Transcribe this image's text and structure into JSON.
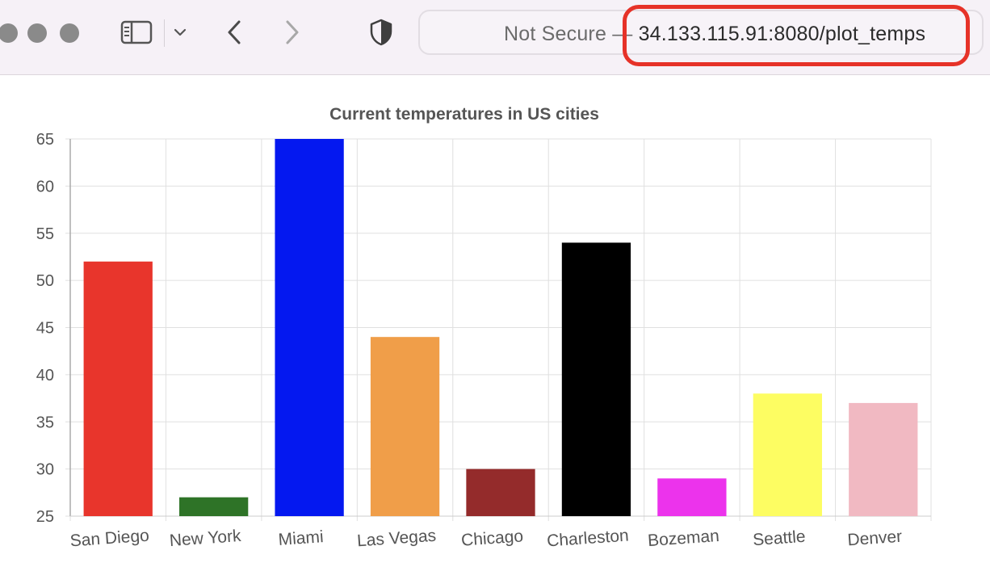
{
  "browser": {
    "security_label": "Not Secure",
    "separator": "—",
    "url": "34.133.115.91:8080/plot_temps",
    "icons": {
      "back": "chevron-left-icon",
      "forward": "chevron-right-icon",
      "sidebar": "sidebar-icon",
      "dropdown": "chevron-down-icon",
      "shield": "shield-icon"
    }
  },
  "chart_data": {
    "type": "bar",
    "title": "Current temperatures in US cities",
    "xlabel": "",
    "ylabel": "",
    "categories": [
      "San Diego",
      "New York",
      "Miami",
      "Las Vegas",
      "Chicago",
      "Charleston",
      "Bozeman",
      "Seattle",
      "Denver"
    ],
    "values": [
      52,
      27,
      65,
      44,
      30,
      54,
      29,
      38,
      37
    ],
    "colors": [
      "#e8352c",
      "#2e7327",
      "#0418f0",
      "#f09e49",
      "#942b2b",
      "#000000",
      "#ec33ec",
      "#fdfd62",
      "#f1b9c2"
    ],
    "ylim": [
      25,
      65
    ],
    "yticks": [
      25,
      30,
      35,
      40,
      45,
      50,
      55,
      60,
      65
    ],
    "grid": true,
    "legend": "none"
  }
}
